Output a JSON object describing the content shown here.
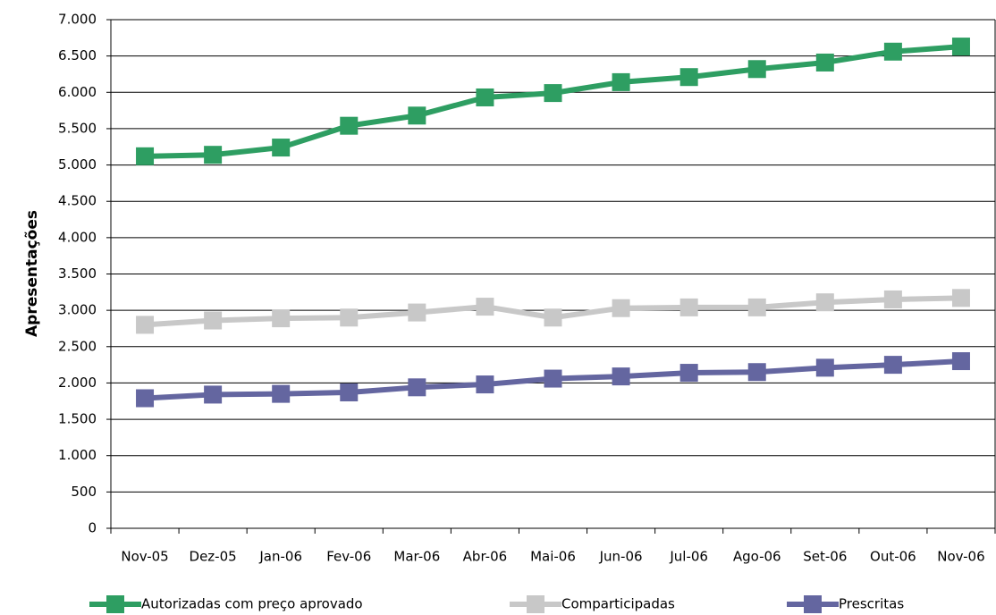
{
  "chart_data": {
    "type": "line",
    "y_label": "Apresentações",
    "categories": [
      "Nov-05",
      "Dez-05",
      "Jan-06",
      "Fev-06",
      "Mar-06",
      "Abr-06",
      "Mai-06",
      "Jun-06",
      "Jul-06",
      "Ago-06",
      "Set-06",
      "Out-06",
      "Nov-06"
    ],
    "series": [
      {
        "name": "Autorizadas com preço aprovado",
        "color": "#2e9e62",
        "values": [
          5120,
          5140,
          5240,
          5540,
          5680,
          5930,
          5990,
          6140,
          6210,
          6320,
          6410,
          6560,
          6630
        ]
      },
      {
        "name": "Comparticipadas",
        "color": "#c8c8c8",
        "values": [
          2800,
          2860,
          2890,
          2900,
          2970,
          3050,
          2900,
          3030,
          3040,
          3040,
          3110,
          3150,
          3170
        ]
      },
      {
        "name": "Prescritas",
        "color": "#6466a0",
        "values": [
          1790,
          1840,
          1850,
          1870,
          1940,
          1980,
          2060,
          2090,
          2140,
          2150,
          2210,
          2250,
          2300
        ]
      }
    ],
    "ylim": [
      0,
      7000
    ],
    "yticks": [
      0,
      500,
      {
        "value": 1000,
        "label": "1.000"
      },
      {
        "value": 1500,
        "label": "1.500"
      },
      {
        "value": 2000,
        "label": "2.000"
      },
      {
        "value": 2500,
        "label": "2.500"
      },
      {
        "value": 3000,
        "label": "3.000"
      },
      {
        "value": 3500,
        "label": "3.500"
      },
      {
        "value": 4000,
        "label": "4.000"
      },
      {
        "value": 4500,
        "label": "4.500"
      },
      {
        "value": 5000,
        "label": "5.000"
      },
      {
        "value": 5500,
        "label": "5.500"
      },
      {
        "value": 6000,
        "label": "6.000"
      },
      {
        "value": 6500,
        "label": "6.500"
      },
      {
        "value": 7000,
        "label": "7.000"
      }
    ],
    "grid": true
  }
}
